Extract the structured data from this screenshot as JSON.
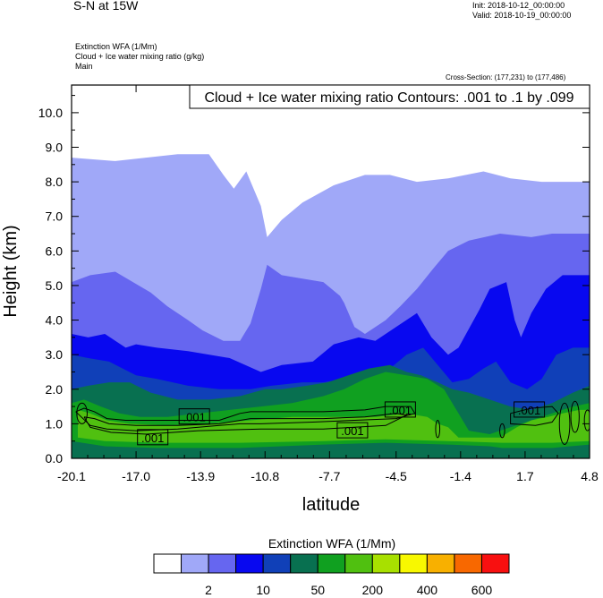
{
  "header": {
    "title": "S-N at 15W",
    "init": "Init: 2018-10-12_00:00:00",
    "valid": "Valid: 2018-10-19_00:00:00",
    "fields": [
      "Extinction WFA   (1/Mm)",
      "Cloud + Ice water mixing ratio   (g/kg)",
      "Main"
    ],
    "cross_section": "Cross-Section: (177,231) to (177,486)"
  },
  "chart_data": {
    "type": "contour",
    "title": "S-N at 15W",
    "xlabel": "latitude",
    "ylabel": "Height (km)",
    "xlim": [
      -20.1,
      4.8
    ],
    "ylim": [
      0.0,
      10.8
    ],
    "xticks": [
      "-20.1",
      "-17.0",
      "-13.9",
      "-10.8",
      "-7.7",
      "-4.5",
      "-1.4",
      "1.7",
      "4.8"
    ],
    "yticks": [
      "0.0",
      "1.0",
      "2.0",
      "3.0",
      "4.0",
      "5.0",
      "6.0",
      "7.0",
      "8.0",
      "9.0",
      "10.0"
    ],
    "contour_info": "Cloud + Ice water mixing ratio Contours: .001 to .1 by .099",
    "contour_labels": [
      {
        "text": ".001",
        "x": -16.2,
        "y": 0.6
      },
      {
        "text": ".001",
        "x": -14.2,
        "y": 1.2
      },
      {
        "text": ".001",
        "x": -6.6,
        "y": 0.8
      },
      {
        "text": ".001",
        "x": -4.3,
        "y": 1.4
      },
      {
        "text": ".001",
        "x": 1.9,
        "y": 1.4
      }
    ],
    "fill_levels": [
      {
        "name": "level-1",
        "color": "#A0A8F8",
        "top": [
          [
            -20.1,
            8.7
          ],
          [
            -18.0,
            8.6
          ],
          [
            -15.0,
            8.8
          ],
          [
            -13.5,
            8.8
          ],
          [
            -12.8,
            8.2
          ],
          [
            -12.3,
            7.8
          ],
          [
            -11.7,
            8.3
          ],
          [
            -11.0,
            7.3
          ],
          [
            -10.7,
            6.4
          ],
          [
            -10.0,
            6.9
          ],
          [
            -9.0,
            7.4
          ],
          [
            -7.5,
            7.9
          ],
          [
            -6.0,
            8.2
          ],
          [
            -4.8,
            8.2
          ],
          [
            -3.5,
            8.0
          ],
          [
            -2.0,
            8.1
          ],
          [
            -0.3,
            8.3
          ],
          [
            1.0,
            8.1
          ],
          [
            2.5,
            8.0
          ],
          [
            4.8,
            8.0
          ]
        ],
        "bottom": [
          [
            4.8,
            0
          ],
          [
            -20.1,
            0
          ]
        ]
      },
      {
        "name": "level-2",
        "color": "#6666F0",
        "top": [
          [
            -20.1,
            5.1
          ],
          [
            -19.2,
            5.3
          ],
          [
            -18.0,
            5.4
          ],
          [
            -16.3,
            4.8
          ],
          [
            -15.5,
            4.4
          ],
          [
            -14.5,
            4.0
          ],
          [
            -13.8,
            3.7
          ],
          [
            -12.8,
            3.4
          ],
          [
            -12.0,
            3.4
          ],
          [
            -11.5,
            3.9
          ],
          [
            -11.0,
            4.9
          ],
          [
            -10.7,
            5.6
          ],
          [
            -10.0,
            5.3
          ],
          [
            -9.0,
            5.2
          ],
          [
            -8.0,
            5.1
          ],
          [
            -7.2,
            4.7
          ],
          [
            -7.0,
            4.5
          ],
          [
            -6.5,
            3.8
          ],
          [
            -6.0,
            3.6
          ],
          [
            -5.0,
            4.0
          ],
          [
            -4.3,
            4.4
          ],
          [
            -3.5,
            4.9
          ],
          [
            -2.7,
            5.5
          ],
          [
            -2.0,
            6.0
          ],
          [
            -1.0,
            6.3
          ],
          [
            0.5,
            6.5
          ],
          [
            2.0,
            6.4
          ],
          [
            3.0,
            6.5
          ],
          [
            4.8,
            6.5
          ]
        ],
        "bottom": [
          [
            4.8,
            0
          ],
          [
            -20.1,
            0
          ]
        ]
      },
      {
        "name": "level-3",
        "color": "#0808F0",
        "top": [
          [
            -20.1,
            3.6
          ],
          [
            -19.3,
            3.5
          ],
          [
            -18.5,
            3.6
          ],
          [
            -17.5,
            3.2
          ],
          [
            -17.0,
            3.3
          ],
          [
            -16.0,
            3.2
          ],
          [
            -14.5,
            3.1
          ],
          [
            -12.5,
            2.9
          ],
          [
            -11.0,
            2.5
          ],
          [
            -10.0,
            2.7
          ],
          [
            -8.5,
            2.8
          ],
          [
            -7.5,
            3.3
          ],
          [
            -6.3,
            3.5
          ],
          [
            -5.5,
            3.4
          ],
          [
            -4.5,
            3.8
          ],
          [
            -3.5,
            4.2
          ],
          [
            -2.8,
            3.5
          ],
          [
            -2.0,
            3.0
          ],
          [
            -1.5,
            3.2
          ],
          [
            -0.5,
            4.3
          ],
          [
            0.0,
            4.9
          ],
          [
            0.8,
            5.1
          ],
          [
            1.2,
            4.0
          ],
          [
            1.5,
            3.5
          ],
          [
            2.0,
            4.2
          ],
          [
            2.7,
            4.9
          ],
          [
            3.5,
            5.3
          ],
          [
            4.8,
            5.3
          ]
        ],
        "bottom": [
          [
            4.8,
            0
          ],
          [
            -20.1,
            0
          ]
        ]
      },
      {
        "name": "level-4",
        "color": "#1040B8",
        "top": [
          [
            -20.1,
            3.0
          ],
          [
            -19.3,
            2.9
          ],
          [
            -18.3,
            2.8
          ],
          [
            -17.0,
            2.4
          ],
          [
            -16.0,
            2.3
          ],
          [
            -14.5,
            2.1
          ],
          [
            -13.0,
            2.0
          ],
          [
            -11.5,
            2.0
          ],
          [
            -10.5,
            2.1
          ],
          [
            -9.0,
            2.2
          ],
          [
            -8.0,
            2.2
          ],
          [
            -7.0,
            2.3
          ],
          [
            -6.0,
            2.4
          ],
          [
            -5.0,
            2.5
          ],
          [
            -4.0,
            3.0
          ],
          [
            -3.2,
            3.2
          ],
          [
            -2.5,
            2.7
          ],
          [
            -1.8,
            2.2
          ],
          [
            -1.0,
            2.3
          ],
          [
            -0.3,
            2.6
          ],
          [
            0.3,
            2.8
          ],
          [
            1.0,
            2.2
          ],
          [
            1.8,
            2.0
          ],
          [
            2.5,
            2.3
          ],
          [
            3.2,
            3.0
          ],
          [
            4.0,
            3.2
          ],
          [
            4.8,
            3.2
          ]
        ],
        "bottom": [
          [
            4.8,
            0
          ],
          [
            -20.1,
            0
          ]
        ]
      },
      {
        "name": "level-5",
        "color": "#087050",
        "top": [
          [
            -20.1,
            2.0
          ],
          [
            -19.3,
            2.1
          ],
          [
            -18.3,
            2.2
          ],
          [
            -17.3,
            2.2
          ],
          [
            -16.3,
            1.9
          ],
          [
            -15.0,
            1.7
          ],
          [
            -13.5,
            1.7
          ],
          [
            -12.0,
            1.8
          ],
          [
            -10.8,
            2.0
          ],
          [
            -10.0,
            2.0
          ],
          [
            -8.8,
            2.1
          ],
          [
            -7.8,
            2.2
          ],
          [
            -6.8,
            2.4
          ],
          [
            -5.8,
            2.6
          ],
          [
            -4.8,
            2.7
          ],
          [
            -4.0,
            2.5
          ],
          [
            -3.3,
            2.4
          ],
          [
            -2.5,
            2.2
          ],
          [
            -1.8,
            2.0
          ],
          [
            -1.0,
            1.9
          ],
          [
            0.0,
            1.7
          ],
          [
            1.0,
            1.5
          ],
          [
            2.0,
            1.4
          ],
          [
            3.0,
            1.6
          ],
          [
            4.0,
            1.9
          ],
          [
            4.8,
            2.1
          ]
        ],
        "bottom": [
          [
            4.8,
            0
          ],
          [
            -20.1,
            0
          ]
        ]
      },
      {
        "name": "level-6",
        "color": "#10A020",
        "top": [
          [
            -20.1,
            1.6
          ],
          [
            -19.5,
            1.7
          ],
          [
            -18.7,
            1.5
          ],
          [
            -17.8,
            1.3
          ],
          [
            -16.8,
            1.2
          ],
          [
            -15.5,
            1.2
          ],
          [
            -14.0,
            1.3
          ],
          [
            -12.5,
            1.4
          ],
          [
            -11.0,
            1.5
          ],
          [
            -9.5,
            1.6
          ],
          [
            -8.0,
            1.8
          ],
          [
            -7.0,
            2.0
          ],
          [
            -6.0,
            2.3
          ],
          [
            -5.0,
            2.5
          ],
          [
            -4.0,
            2.4
          ],
          [
            -3.0,
            2.3
          ],
          [
            -2.2,
            2.0
          ],
          [
            -1.5,
            1.3
          ],
          [
            -1.0,
            0.8
          ],
          [
            0.0,
            0.7
          ],
          [
            1.0,
            0.9
          ],
          [
            2.0,
            1.1
          ],
          [
            3.0,
            1.3
          ],
          [
            4.0,
            1.5
          ],
          [
            4.8,
            1.6
          ]
        ],
        "bottom": [
          [
            4.8,
            0.4
          ],
          [
            3.0,
            0.3
          ],
          [
            2.0,
            0.3
          ],
          [
            0.6,
            0.3
          ],
          [
            0.0,
            0.35
          ],
          [
            -2.0,
            0.4
          ],
          [
            -5.0,
            0.45
          ],
          [
            -8.0,
            0.4
          ],
          [
            -12.0,
            0.3
          ],
          [
            -16.0,
            0.3
          ],
          [
            -18.5,
            0.35
          ],
          [
            -20.1,
            0.5
          ]
        ]
      },
      {
        "name": "level-7",
        "color": "#50C010",
        "top": [
          [
            -19.8,
            1.4
          ],
          [
            -19.2,
            1.3
          ],
          [
            -18.4,
            1.1
          ],
          [
            -17.3,
            1.0
          ],
          [
            -15.5,
            0.95
          ],
          [
            -13.5,
            1.0
          ],
          [
            -11.5,
            1.1
          ],
          [
            -9.5,
            1.2
          ],
          [
            -7.5,
            1.2
          ],
          [
            -5.5,
            1.2
          ],
          [
            -4.0,
            1.3
          ],
          [
            -3.0,
            1.2
          ],
          [
            -2.5,
            1.0
          ],
          [
            -2.0,
            0.9
          ],
          [
            -1.5,
            0.6
          ],
          [
            0.5,
            0.6
          ],
          [
            1.3,
            0.9
          ],
          [
            2.0,
            1.1
          ],
          [
            2.8,
            1.2
          ],
          [
            3.5,
            1.3
          ],
          [
            4.3,
            1.4
          ],
          [
            4.8,
            1.4
          ]
        ],
        "bottom": [
          [
            4.8,
            0.5
          ],
          [
            3.0,
            0.45
          ],
          [
            2.0,
            0.45
          ],
          [
            0.6,
            0.45
          ],
          [
            -2.0,
            0.5
          ],
          [
            -5.0,
            0.55
          ],
          [
            -8.0,
            0.5
          ],
          [
            -12.0,
            0.45
          ],
          [
            -16.0,
            0.45
          ],
          [
            -18.5,
            0.5
          ],
          [
            -19.8,
            0.6
          ]
        ]
      }
    ],
    "legend": {
      "title": "Extinction WFA  (1/Mm)",
      "colors": [
        "#FFFFFF",
        "#A0A8F8",
        "#6666F0",
        "#0808F0",
        "#1040B8",
        "#087050",
        "#10A020",
        "#50C010",
        "#A8E000",
        "#F8F800",
        "#F8B000",
        "#F86800",
        "#F81010"
      ],
      "tick_labels": [
        "2",
        "10",
        "50",
        "200",
        "400",
        "600"
      ]
    }
  }
}
